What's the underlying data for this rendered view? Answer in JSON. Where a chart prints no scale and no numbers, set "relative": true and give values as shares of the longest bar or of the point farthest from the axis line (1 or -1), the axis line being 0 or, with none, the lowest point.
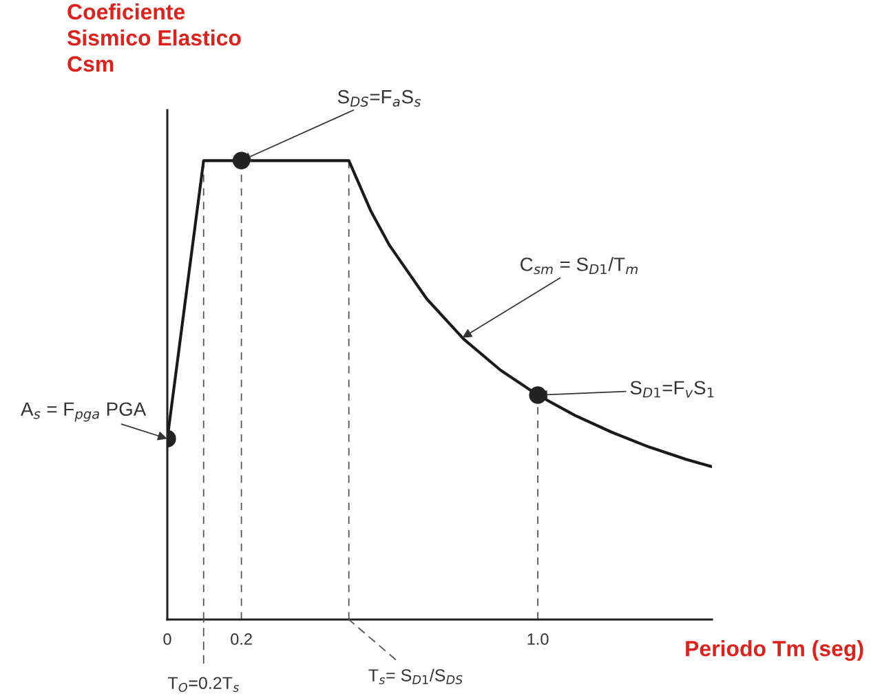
{
  "chart_data": {
    "type": "line",
    "relative": true,
    "ylabel": "Coeficiente\nSismico Elastico\nCsm",
    "xlabel": "Periodo Tm (seg)",
    "xlim": [
      0,
      1.47
    ],
    "xticks": [
      0,
      0.2,
      {
        "value": 1.0,
        "label": "1.0"
      }
    ],
    "tick_labels": "x",
    "grid": false,
    "series": [
      {
        "color": "#1a1a1a",
        "marker": "none",
        "line_style": "solid",
        "x": [
          0,
          0.098,
          0.49,
          0.55,
          0.6,
          0.7,
          0.8,
          0.9,
          1.0,
          1.1,
          1.2,
          1.3,
          1.4,
          1.47
        ],
        "values": [
          0.394,
          1,
          1,
          0.889,
          0.815,
          0.699,
          0.611,
          0.543,
          0.489,
          0.445,
          0.408,
          0.376,
          0.349,
          0.333
        ]
      },
      {
        "type": "scatter",
        "color": "#222222",
        "marker": "circle",
        "x": [
          0,
          0.2,
          1.0
        ],
        "values": [
          0.394,
          1,
          0.489
        ]
      }
    ],
    "ref_lines": [
      {
        "axis": "x",
        "value": 0.098,
        "line_style": "dashed",
        "color": "#555555"
      },
      {
        "axis": "x",
        "value": 0.2,
        "line_style": "dashed",
        "color": "#555555"
      },
      {
        "axis": "x",
        "value": 0.49,
        "line_style": "dashed",
        "color": "#555555"
      },
      {
        "axis": "x",
        "value": 1.0,
        "line_style": "dashed",
        "color": "#555555"
      }
    ],
    "annotations": [
      {
        "text": "A$_{s}$ = F$_{pga}$ PGA",
        "x": 0,
        "y": 0.394
      },
      {
        "text": "S$_{DS}$=F$_{a}$S$_{s}$",
        "x": 0.2,
        "y": 1
      },
      {
        "text": "C$_{sm}$ = S$_{D1}$/T$_{m}$",
        "x": 0.796,
        "y": 0.614
      },
      {
        "text": "S$_{D1}$=F$_{v}$S$_{1}$",
        "x": 1.0,
        "y": 0.489
      },
      {
        "text": "T$_{O}$=0.2T$_{s}$",
        "x": 0.098,
        "y": 0
      },
      {
        "text": "T$_{s}$= S$_{D1}$/S$_{DS}$",
        "x": 0.49,
        "y": 0
      }
    ]
  }
}
